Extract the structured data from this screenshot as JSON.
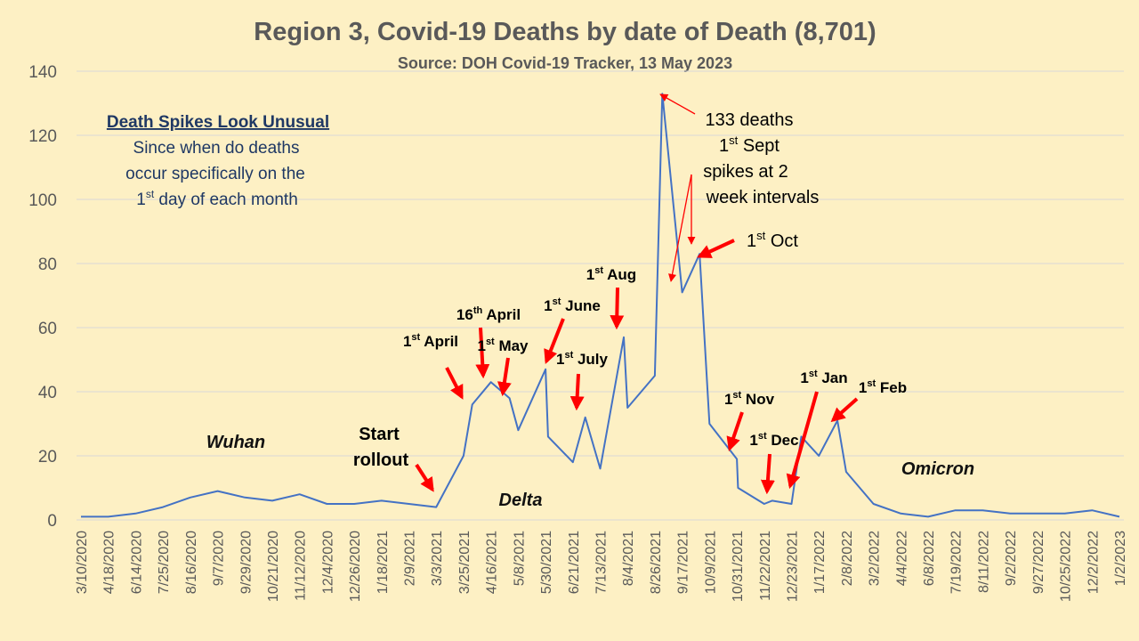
{
  "chart_data": {
    "type": "line",
    "title": "Region 3, Covid-19 Deaths by date of Death (8,701)",
    "subtitle": "Source: DOH Covid-19 Tracker, 13 May 2023",
    "ylim": [
      0,
      140
    ],
    "yticks": [
      0,
      20,
      40,
      60,
      80,
      100,
      120,
      140
    ],
    "xticks": [
      "3/10/2020",
      "4/18/2020",
      "6/14/2020",
      "7/25/2020",
      "8/16/2020",
      "9/7/2020",
      "9/29/2020",
      "10/21/2020",
      "11/12/2020",
      "12/4/2020",
      "12/26/2020",
      "1/18/2021",
      "2/9/2021",
      "3/3/2021",
      "3/25/2021",
      "4/16/2021",
      "5/8/2021",
      "5/30/2021",
      "6/21/2021",
      "7/13/2021",
      "8/4/2021",
      "8/26/2021",
      "9/17/2021",
      "10/9/2021",
      "10/31/2021",
      "11/22/2021",
      "12/23/2021",
      "1/17/2022",
      "2/8/2022",
      "3/2/2022",
      "4/4/2022",
      "6/8/2022",
      "7/19/2022",
      "8/11/2022",
      "9/2/2022",
      "9/27/2022",
      "10/25/2022",
      "12/2/2022",
      "1/2/2023"
    ],
    "grid": true,
    "series": [
      {
        "color": "#4472c4",
        "x": [
          "3/10/2020",
          "4/18/2020",
          "6/14/2020",
          "7/25/2020",
          "8/16/2020",
          "9/7/2020",
          "9/29/2020",
          "10/21/2020",
          "11/12/2020",
          "12/4/2020",
          "12/26/2020",
          "1/18/2021",
          "2/9/2021",
          "3/3/2021",
          "3/25/2021",
          "4/1/2021",
          "4/16/2021",
          "5/1/2021",
          "5/8/2021",
          "5/30/2021",
          "6/1/2021",
          "6/21/2021",
          "7/1/2021",
          "7/13/2021",
          "8/1/2021",
          "8/4/2021",
          "8/26/2021",
          "9/1/2021",
          "9/17/2021",
          "10/1/2021",
          "10/9/2021",
          "10/31/2021",
          "11/1/2021",
          "11/22/2021",
          "12/1/2021",
          "12/23/2021",
          "1/1/2022",
          "1/17/2022",
          "2/1/2022",
          "2/8/2022",
          "3/2/2022",
          "4/4/2022",
          "6/8/2022",
          "7/19/2022",
          "8/11/2022",
          "9/2/2022",
          "9/27/2022",
          "10/25/2022",
          "12/2/2022",
          "1/2/2023"
        ],
        "values": [
          1,
          1,
          2,
          4,
          7,
          9,
          7,
          6,
          8,
          5,
          5,
          6,
          5,
          4,
          20,
          36,
          43,
          38,
          28,
          47,
          26,
          18,
          32,
          16,
          57,
          35,
          45,
          133,
          71,
          83,
          30,
          19,
          10,
          5,
          6,
          5,
          26,
          20,
          31,
          15,
          5,
          2,
          1,
          3,
          3,
          2,
          2,
          2,
          3,
          1
        ]
      }
    ],
    "annotations": {
      "start_rollout_1": "Start",
      "start_rollout_2": "rollout",
      "april1_pre": "1",
      "april1_sup": "st",
      "april1_post": " April",
      "april16_pre": "16",
      "april16_sup": "th",
      "april16_post": " April",
      "may1_pre": "1",
      "may1_sup": "st",
      "may1_post": " May",
      "june1_pre": "1",
      "june1_sup": "st",
      "june1_post": " June",
      "july1_pre": "1",
      "july1_sup": "st",
      "july1_post": " July",
      "aug1_pre": "1",
      "aug1_sup": "st",
      "aug1_post": " Aug",
      "sept_line1": "133 deaths",
      "sept_line2_pre": "1",
      "sept_line2_sup": "st",
      "sept_line2_post": " Sept",
      "spikes_line1": "spikes at 2",
      "spikes_line2": "week intervals",
      "oct1_pre": "1",
      "oct1_sup": "st",
      "oct1_post": " Oct",
      "nov1_pre": "1",
      "nov1_sup": "st",
      "nov1_post": " Nov",
      "dec1_pre": "1",
      "dec1_sup": "st",
      "dec1_post": " Dec",
      "jan1_pre": "1",
      "jan1_sup": "st",
      "jan1_post": " Jan",
      "feb1_pre": "1",
      "feb1_sup": "st",
      "feb1_post": " Feb",
      "wuhan": "Wuhan",
      "delta": "Delta",
      "omicron": "Omicron"
    },
    "note_box": {
      "title": "Death Spikes Look Unusual",
      "line1": "Since when do deaths",
      "line2": "occur specifically on the",
      "line3_pre": "1",
      "line3_sup": "st",
      "line3_post": " day of each month"
    }
  }
}
